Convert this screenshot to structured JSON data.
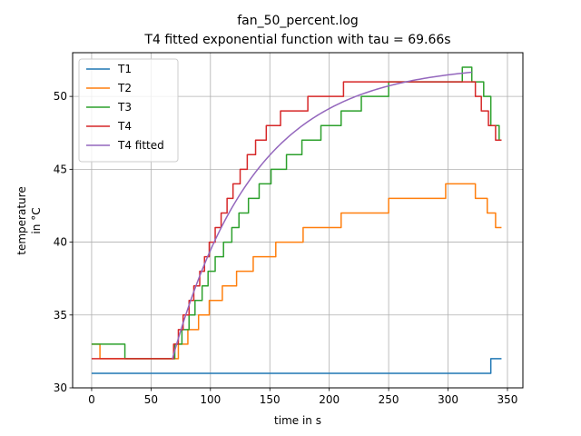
{
  "chart_data": {
    "type": "line",
    "title": "fan_50_percent.log",
    "subtitle": "T4 fitted exponential function with tau = 69.66s",
    "xlabel": "time in s",
    "ylabel_lines": [
      "temperature",
      "in °C"
    ],
    "xlim": [
      -16,
      363
    ],
    "ylim": [
      30,
      53
    ],
    "xticks": [
      0,
      50,
      100,
      150,
      200,
      250,
      300,
      350
    ],
    "yticks": [
      30,
      35,
      40,
      45,
      50
    ],
    "grid": true,
    "legend_position": "top-left",
    "series": [
      {
        "name": "T1",
        "color": "#1f77b4",
        "step": true,
        "points": [
          [
            0,
            31
          ],
          [
            336,
            31
          ],
          [
            336,
            32
          ],
          [
            345,
            32
          ]
        ]
      },
      {
        "name": "T2",
        "color": "#ff7f0e",
        "step": true,
        "points": [
          [
            0,
            33
          ],
          [
            7,
            33
          ],
          [
            7,
            32
          ],
          [
            73,
            32
          ],
          [
            73,
            33
          ],
          [
            81,
            33
          ],
          [
            81,
            34
          ],
          [
            90,
            34
          ],
          [
            90,
            35
          ],
          [
            99,
            35
          ],
          [
            99,
            36
          ],
          [
            110,
            36
          ],
          [
            110,
            37
          ],
          [
            122,
            37
          ],
          [
            122,
            38
          ],
          [
            136,
            38
          ],
          [
            136,
            39
          ],
          [
            155,
            39
          ],
          [
            155,
            40
          ],
          [
            178,
            40
          ],
          [
            178,
            41
          ],
          [
            210,
            41
          ],
          [
            210,
            42
          ],
          [
            250,
            42
          ],
          [
            250,
            43
          ],
          [
            298,
            43
          ],
          [
            298,
            44
          ],
          [
            323,
            44
          ],
          [
            323,
            43
          ],
          [
            333,
            43
          ],
          [
            333,
            42
          ],
          [
            340,
            42
          ],
          [
            340,
            41
          ],
          [
            345,
            41
          ]
        ]
      },
      {
        "name": "T3",
        "color": "#2ca02c",
        "step": true,
        "points": [
          [
            0,
            33
          ],
          [
            28,
            33
          ],
          [
            28,
            32
          ],
          [
            70,
            32
          ],
          [
            70,
            33
          ],
          [
            76,
            33
          ],
          [
            76,
            34
          ],
          [
            82,
            34
          ],
          [
            82,
            35
          ],
          [
            87,
            35
          ],
          [
            87,
            36
          ],
          [
            93,
            36
          ],
          [
            93,
            37
          ],
          [
            98,
            37
          ],
          [
            98,
            38
          ],
          [
            104,
            38
          ],
          [
            104,
            39
          ],
          [
            111,
            39
          ],
          [
            111,
            40
          ],
          [
            118,
            40
          ],
          [
            118,
            41
          ],
          [
            124,
            41
          ],
          [
            124,
            42
          ],
          [
            132,
            42
          ],
          [
            132,
            43
          ],
          [
            141,
            43
          ],
          [
            141,
            44
          ],
          [
            151,
            44
          ],
          [
            151,
            45
          ],
          [
            164,
            45
          ],
          [
            164,
            46
          ],
          [
            177,
            46
          ],
          [
            177,
            47
          ],
          [
            193,
            47
          ],
          [
            193,
            48
          ],
          [
            210,
            48
          ],
          [
            210,
            49
          ],
          [
            227,
            49
          ],
          [
            227,
            50
          ],
          [
            250,
            50
          ],
          [
            250,
            51
          ],
          [
            312,
            51
          ],
          [
            312,
            52
          ],
          [
            320,
            52
          ],
          [
            320,
            51
          ],
          [
            330,
            51
          ],
          [
            330,
            50
          ],
          [
            336,
            50
          ],
          [
            336,
            48
          ],
          [
            343,
            48
          ],
          [
            343,
            47
          ],
          [
            345,
            47
          ]
        ]
      },
      {
        "name": "T4",
        "color": "#d62728",
        "step": true,
        "points": [
          [
            0,
            32
          ],
          [
            69,
            32
          ],
          [
            69,
            33
          ],
          [
            73,
            33
          ],
          [
            73,
            34
          ],
          [
            77,
            34
          ],
          [
            77,
            35
          ],
          [
            82,
            35
          ],
          [
            82,
            36
          ],
          [
            86,
            36
          ],
          [
            86,
            37
          ],
          [
            91,
            37
          ],
          [
            91,
            38
          ],
          [
            95,
            38
          ],
          [
            95,
            39
          ],
          [
            99,
            39
          ],
          [
            99,
            40
          ],
          [
            104,
            40
          ],
          [
            104,
            41
          ],
          [
            109,
            41
          ],
          [
            109,
            42
          ],
          [
            114,
            42
          ],
          [
            114,
            43
          ],
          [
            119,
            43
          ],
          [
            119,
            44
          ],
          [
            125,
            44
          ],
          [
            125,
            45
          ],
          [
            131,
            45
          ],
          [
            131,
            46
          ],
          [
            138,
            46
          ],
          [
            138,
            47
          ],
          [
            147,
            47
          ],
          [
            147,
            48
          ],
          [
            159,
            48
          ],
          [
            159,
            49
          ],
          [
            182,
            49
          ],
          [
            182,
            50
          ],
          [
            212,
            50
          ],
          [
            212,
            51
          ],
          [
            323,
            51
          ],
          [
            323,
            50
          ],
          [
            328,
            50
          ],
          [
            328,
            49
          ],
          [
            334,
            49
          ],
          [
            334,
            48
          ],
          [
            340,
            48
          ],
          [
            340,
            47
          ],
          [
            345,
            47
          ]
        ]
      },
      {
        "name": "T4 fitted",
        "color": "#9467bd",
        "step": false,
        "model": "exponential",
        "tau": 69.66,
        "t0": 68,
        "t_end": 320,
        "y_start": 32,
        "y_final": 52.2
      }
    ]
  }
}
